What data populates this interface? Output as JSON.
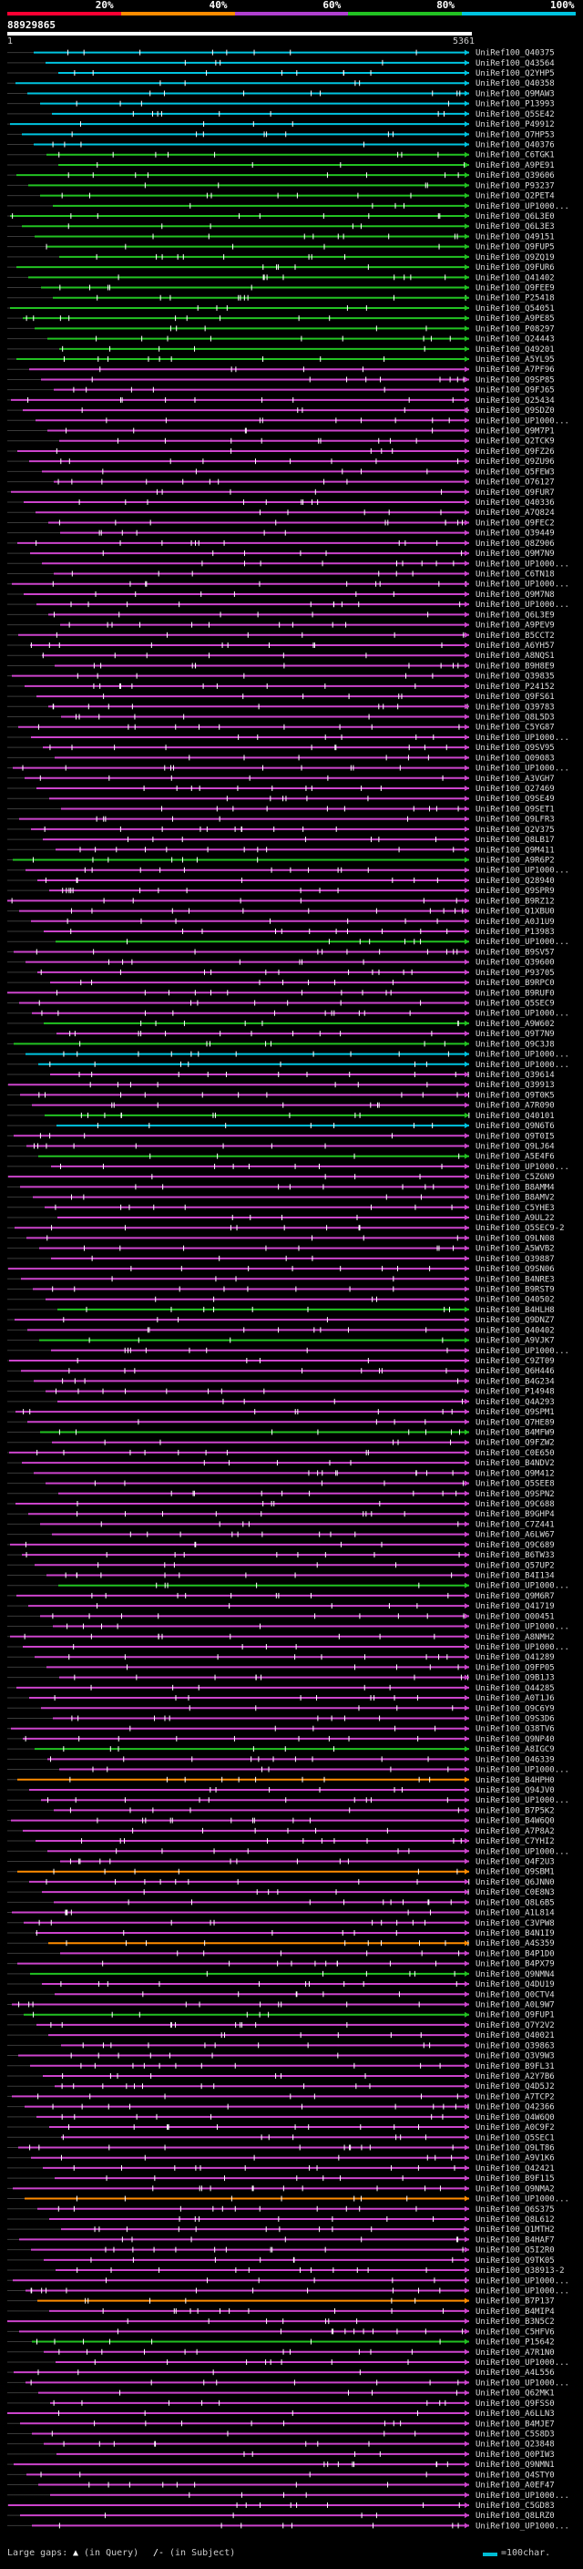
{
  "scale": {
    "labels": [
      "20%",
      "40%",
      "60%",
      "80%",
      "100%"
    ],
    "colors": [
      "#ff0033",
      "#ff8c00",
      "#b040d0",
      "#22c222",
      "#00c4e0"
    ]
  },
  "query": {
    "id": "88929865",
    "start": "1",
    "end": "5361"
  },
  "hit_colors": {
    "cyan": "#00c4e0",
    "green": "#22c222",
    "magenta": "#cc44cc",
    "orange": "#ff8c00",
    "gaps": "#888888"
  },
  "hits": [
    {
      "name": "UniRef100_Q40375",
      "color": "cyan"
    },
    {
      "name": "UniRef100_Q43564",
      "color": "cyan"
    },
    {
      "name": "UniRef100_Q2YHP5",
      "color": "cyan"
    },
    {
      "name": "UniRef100_Q40358",
      "color": "cyan"
    },
    {
      "name": "UniRef100_Q9MAW3",
      "color": "cyan"
    },
    {
      "name": "UniRef100_P13993",
      "color": "cyan"
    },
    {
      "name": "UniRef100_Q5SE42",
      "color": "cyan"
    },
    {
      "name": "UniRef100_P49912",
      "color": "cyan"
    },
    {
      "name": "UniRef100_Q7HP53",
      "color": "cyan"
    },
    {
      "name": "UniRef100_Q40376",
      "color": "cyan"
    },
    {
      "name": "UniRef100_C6TGK1",
      "color": "green"
    },
    {
      "name": "UniRef100_A9PE91",
      "color": "green"
    },
    {
      "name": "UniRef100_Q39606",
      "color": "green"
    },
    {
      "name": "UniRef100_P93237",
      "color": "green"
    },
    {
      "name": "UniRef100_Q2PET4",
      "color": "green"
    },
    {
      "name": "UniRef100_UP1000...",
      "color": "green"
    },
    {
      "name": "UniRef100_Q6L3E0",
      "color": "green"
    },
    {
      "name": "UniRef100_Q6L3E3",
      "color": "green"
    },
    {
      "name": "UniRef100_Q49151",
      "color": "green"
    },
    {
      "name": "UniRef100_Q9FUP5",
      "color": "green"
    },
    {
      "name": "UniRef100_Q9ZQ19",
      "color": "green"
    },
    {
      "name": "UniRef100_Q9FUR6",
      "color": "green"
    },
    {
      "name": "UniRef100_Q41402",
      "color": "green"
    },
    {
      "name": "UniRef100_Q9FEE9",
      "color": "green"
    },
    {
      "name": "UniRef100_P25418",
      "color": "green"
    },
    {
      "name": "UniRef100_Q54051",
      "color": "green"
    },
    {
      "name": "UniRef100_A9PE85",
      "color": "green"
    },
    {
      "name": "UniRef100_P08297",
      "color": "green"
    },
    {
      "name": "UniRef100_Q24443",
      "color": "green"
    },
    {
      "name": "UniRef100_Q49201",
      "color": "green"
    },
    {
      "name": "UniRef100_A5YL95",
      "color": "green"
    },
    {
      "name": "UniRef100_A7PF96",
      "color": "magenta"
    },
    {
      "name": "UniRef100_Q9SP85",
      "color": "magenta"
    },
    {
      "name": "UniRef100_Q9FJ65",
      "color": "magenta"
    },
    {
      "name": "UniRef100_Q25434",
      "color": "magenta"
    },
    {
      "name": "UniRef100_Q9SDZ0",
      "color": "magenta"
    },
    {
      "name": "UniRef100_UP1000...",
      "color": "magenta"
    },
    {
      "name": "UniRef100_Q9M7P1",
      "color": "magenta"
    },
    {
      "name": "UniRef100_Q2TCK9",
      "color": "magenta"
    },
    {
      "name": "UniRef100_Q9FZ26",
      "color": "magenta"
    },
    {
      "name": "UniRef100_Q9ZU96",
      "color": "magenta"
    },
    {
      "name": "UniRef100_Q5FEW3",
      "color": "magenta"
    },
    {
      "name": "UniRef100_O76127",
      "color": "magenta"
    },
    {
      "name": "UniRef100_Q9FUR7",
      "color": "magenta"
    },
    {
      "name": "UniRef100_Q40336",
      "color": "magenta"
    },
    {
      "name": "UniRef100_A7Q824",
      "color": "magenta"
    },
    {
      "name": "UniRef100_Q9FEC2",
      "color": "magenta"
    },
    {
      "name": "UniRef100_Q39449",
      "color": "magenta"
    },
    {
      "name": "UniRef100_Q8Z906",
      "color": "magenta"
    },
    {
      "name": "UniRef100_Q9M7N9",
      "color": "magenta"
    },
    {
      "name": "UniRef100_UP1000...",
      "color": "magenta"
    },
    {
      "name": "UniRef100_C6TN18",
      "color": "magenta"
    },
    {
      "name": "UniRef100_UP1000...",
      "color": "magenta"
    },
    {
      "name": "UniRef100_Q9M7N8",
      "color": "magenta"
    },
    {
      "name": "UniRef100_UP1000...",
      "color": "magenta"
    },
    {
      "name": "UniRef100_Q6L3E9",
      "color": "magenta"
    },
    {
      "name": "UniRef100_A9PEV9",
      "color": "magenta"
    },
    {
      "name": "UniRef100_B5CCT2",
      "color": "magenta"
    },
    {
      "name": "UniRef100_A6YH57",
      "color": "magenta"
    },
    {
      "name": "UniRef100_A8NQS1",
      "color": "magenta"
    },
    {
      "name": "UniRef100_B9H8E9",
      "color": "magenta"
    },
    {
      "name": "UniRef100_Q39835",
      "color": "magenta"
    },
    {
      "name": "UniRef100_P24152",
      "color": "magenta"
    },
    {
      "name": "UniRef100_Q9FS61",
      "color": "magenta"
    },
    {
      "name": "UniRef100_Q39783",
      "color": "magenta"
    },
    {
      "name": "UniRef100_Q8L5D3",
      "color": "magenta"
    },
    {
      "name": "UniRef100_C5YG87",
      "color": "magenta"
    },
    {
      "name": "UniRef100_UP1000...",
      "color": "magenta"
    },
    {
      "name": "UniRef100_Q9SV95",
      "color": "magenta"
    },
    {
      "name": "UniRef100_Q09083",
      "color": "magenta"
    },
    {
      "name": "UniRef100_UP1000...",
      "color": "magenta"
    },
    {
      "name": "UniRef100_A3VGH7",
      "color": "magenta"
    },
    {
      "name": "UniRef100_Q27469",
      "color": "magenta"
    },
    {
      "name": "UniRef100_Q9SE49",
      "color": "magenta"
    },
    {
      "name": "UniRef100_Q9SET1",
      "color": "magenta"
    },
    {
      "name": "UniRef100_Q9LFR3",
      "color": "magenta"
    },
    {
      "name": "UniRef100_Q2V375",
      "color": "magenta"
    },
    {
      "name": "UniRef100_Q8LB17",
      "color": "magenta"
    },
    {
      "name": "UniRef100_Q9M411",
      "color": "magenta"
    },
    {
      "name": "UniRef100_A9R6P2",
      "color": "green"
    },
    {
      "name": "UniRef100_UP1000...",
      "color": "magenta"
    },
    {
      "name": "UniRef100_Q28940",
      "color": "magenta"
    },
    {
      "name": "UniRef100_Q9SPR9",
      "color": "magenta"
    },
    {
      "name": "UniRef100_B9RZ12",
      "color": "magenta"
    },
    {
      "name": "UniRef100_Q1XBU0",
      "color": "magenta"
    },
    {
      "name": "UniRef100_A0J1U9",
      "color": "magenta"
    },
    {
      "name": "UniRef100_P13983",
      "color": "magenta"
    },
    {
      "name": "UniRef100_UP1000...",
      "color": "green"
    },
    {
      "name": "UniRef100_B9SV57",
      "color": "magenta"
    },
    {
      "name": "UniRef100_Q39600",
      "color": "magenta"
    },
    {
      "name": "UniRef100_P93705",
      "color": "magenta"
    },
    {
      "name": "UniRef100_B9RPC0",
      "color": "magenta"
    },
    {
      "name": "UniRef100_B9RUF0",
      "color": "magenta"
    },
    {
      "name": "UniRef100_Q5SEC9",
      "color": "magenta"
    },
    {
      "name": "UniRef100_UP1000...",
      "color": "magenta"
    },
    {
      "name": "UniRef100_A9W602",
      "color": "green"
    },
    {
      "name": "UniRef100_Q9T7N9",
      "color": "magenta"
    },
    {
      "name": "UniRef100_Q9C3J8",
      "color": "green"
    },
    {
      "name": "UniRef100_UP1000...",
      "color": "cyan"
    },
    {
      "name": "UniRef100_UP1000...",
      "color": "cyan"
    },
    {
      "name": "UniRef100_Q39614",
      "color": "magenta"
    },
    {
      "name": "UniRef100_Q39913",
      "color": "magenta"
    },
    {
      "name": "UniRef100_Q9T0K5",
      "color": "magenta"
    },
    {
      "name": "UniRef100_A7R090",
      "color": "magenta"
    },
    {
      "name": "UniRef100_Q40101",
      "color": "green"
    },
    {
      "name": "UniRef100_Q9N6T6",
      "color": "cyan"
    },
    {
      "name": "UniRef100_Q9T0I5",
      "color": "magenta"
    },
    {
      "name": "UniRef100_Q9LJ64",
      "color": "magenta"
    },
    {
      "name": "UniRef100_A5E4F6",
      "color": "green"
    },
    {
      "name": "UniRef100_UP1000...",
      "color": "magenta"
    },
    {
      "name": "UniRef100_C5Z6N9",
      "color": "magenta"
    },
    {
      "name": "UniRef100_B8AMM4",
      "color": "magenta"
    },
    {
      "name": "UniRef100_B8AMV2",
      "color": "magenta"
    },
    {
      "name": "UniRef100_C5YHE3",
      "color": "magenta"
    },
    {
      "name": "UniRef100_A9UL22",
      "color": "magenta"
    },
    {
      "name": "UniRef100_Q5SEC9-2",
      "color": "magenta"
    },
    {
      "name": "UniRef100_Q9LN08",
      "color": "magenta"
    },
    {
      "name": "UniRef100_A5WVB2",
      "color": "magenta"
    },
    {
      "name": "UniRef100_Q39887",
      "color": "magenta"
    },
    {
      "name": "UniRef100_Q9SN06",
      "color": "magenta"
    },
    {
      "name": "UniRef100_B4NRE3",
      "color": "magenta"
    },
    {
      "name": "UniRef100_B9RST9",
      "color": "magenta"
    },
    {
      "name": "UniRef100_Q40502",
      "color": "magenta"
    },
    {
      "name": "UniRef100_B4HLH8",
      "color": "green"
    },
    {
      "name": "UniRef100_Q9DNZ7",
      "color": "magenta"
    },
    {
      "name": "UniRef100_Q40402",
      "color": "magenta"
    },
    {
      "name": "UniRef100_A9VJK7",
      "color": "green"
    },
    {
      "name": "UniRef100_UP1000...",
      "color": "magenta"
    },
    {
      "name": "UniRef100_C9ZT09",
      "color": "magenta"
    },
    {
      "name": "UniRef100_Q6H446",
      "color": "magenta"
    },
    {
      "name": "UniRef100_B4G234",
      "color": "magenta"
    },
    {
      "name": "UniRef100_P14948",
      "color": "magenta"
    },
    {
      "name": "UniRef100_Q4A293",
      "color": "magenta"
    },
    {
      "name": "UniRef100_Q9SPM1",
      "color": "magenta"
    },
    {
      "name": "UniRef100_Q7HE89",
      "color": "magenta"
    },
    {
      "name": "UniRef100_B4MFW9",
      "color": "green"
    },
    {
      "name": "UniRef100_Q9FZW2",
      "color": "magenta"
    },
    {
      "name": "UniRef100_C0E650",
      "color": "magenta"
    },
    {
      "name": "UniRef100_B4NDV2",
      "color": "magenta"
    },
    {
      "name": "UniRef100_Q9M412",
      "color": "magenta"
    },
    {
      "name": "UniRef100_Q5SEE8",
      "color": "magenta"
    },
    {
      "name": "UniRef100_Q9SPN2",
      "color": "magenta"
    },
    {
      "name": "UniRef100_Q9C688",
      "color": "magenta"
    },
    {
      "name": "UniRef100_B9GHP4",
      "color": "magenta"
    },
    {
      "name": "UniRef100_C7Z441",
      "color": "magenta"
    },
    {
      "name": "UniRef100_A6LW67",
      "color": "magenta"
    },
    {
      "name": "UniRef100_Q9C689",
      "color": "magenta"
    },
    {
      "name": "UniRef100_B6TW33",
      "color": "magenta"
    },
    {
      "name": "UniRef100_Q57UP2",
      "color": "magenta"
    },
    {
      "name": "UniRef100_B4I134",
      "color": "magenta"
    },
    {
      "name": "UniRef100_UP1000...",
      "color": "green"
    },
    {
      "name": "UniRef100_Q9M6R7",
      "color": "magenta"
    },
    {
      "name": "UniRef100_Q41719",
      "color": "magenta"
    },
    {
      "name": "UniRef100_Q00451",
      "color": "magenta"
    },
    {
      "name": "UniRef100_UP1000...",
      "color": "magenta"
    },
    {
      "name": "UniRef100_A8NMH2",
      "color": "magenta"
    },
    {
      "name": "UniRef100_UP1000...",
      "color": "magenta"
    },
    {
      "name": "UniRef100_Q41289",
      "color": "magenta"
    },
    {
      "name": "UniRef100_Q9FP05",
      "color": "magenta"
    },
    {
      "name": "UniRef100_Q9B1J3",
      "color": "magenta"
    },
    {
      "name": "UniRef100_Q44285",
      "color": "magenta"
    },
    {
      "name": "UniRef100_A0T1J6",
      "color": "magenta"
    },
    {
      "name": "UniRef100_Q9C6Y9",
      "color": "magenta"
    },
    {
      "name": "UniRef100_Q9S3D6",
      "color": "magenta"
    },
    {
      "name": "UniRef100_Q38TV6",
      "color": "magenta"
    },
    {
      "name": "UniRef100_Q9NP40",
      "color": "magenta"
    },
    {
      "name": "UniRef100_A8IGC9",
      "color": "green"
    },
    {
      "name": "UniRef100_Q46339",
      "color": "magenta"
    },
    {
      "name": "UniRef100_UP1000...",
      "color": "magenta"
    },
    {
      "name": "UniRef100_B4HPH0",
      "color": "orange"
    },
    {
      "name": "UniRef100_Q94JV0",
      "color": "magenta"
    },
    {
      "name": "UniRef100_UP1000...",
      "color": "magenta"
    },
    {
      "name": "UniRef100_B7P5K2",
      "color": "magenta"
    },
    {
      "name": "UniRef100_B4W6Q0",
      "color": "magenta"
    },
    {
      "name": "UniRef100_A7P8A2",
      "color": "magenta"
    },
    {
      "name": "UniRef100_C7YHI2",
      "color": "magenta"
    },
    {
      "name": "UniRef100_UP1000...",
      "color": "magenta"
    },
    {
      "name": "UniRef100_Q4F2U3",
      "color": "magenta"
    },
    {
      "name": "UniRef100_Q9SBM1",
      "color": "orange"
    },
    {
      "name": "UniRef100_Q6JNN0",
      "color": "magenta"
    },
    {
      "name": "UniRef100_C0E8N3",
      "color": "magenta"
    },
    {
      "name": "UniRef100_Q8L6B5",
      "color": "magenta"
    },
    {
      "name": "UniRef100_A1L814",
      "color": "magenta"
    },
    {
      "name": "UniRef100_C3VPW8",
      "color": "magenta"
    },
    {
      "name": "UniRef100_B4N1I9",
      "color": "magenta"
    },
    {
      "name": "UniRef100_A4S359",
      "color": "orange"
    },
    {
      "name": "UniRef100_B4P1D0",
      "color": "magenta"
    },
    {
      "name": "UniRef100_B4PX79",
      "color": "magenta"
    },
    {
      "name": "UniRef100_Q9NMN4",
      "color": "green"
    },
    {
      "name": "UniRef100_Q4DU19",
      "color": "magenta"
    },
    {
      "name": "UniRef100_Q0CTV4",
      "color": "magenta"
    },
    {
      "name": "UniRef100_A0L9W7",
      "color": "magenta"
    },
    {
      "name": "UniRef100_Q9FUP1",
      "color": "green"
    },
    {
      "name": "UniRef100_Q7Y2V2",
      "color": "magenta"
    },
    {
      "name": "UniRef100_Q40021",
      "color": "magenta"
    },
    {
      "name": "UniRef100_Q39863",
      "color": "magenta"
    },
    {
      "name": "UniRef100_Q3V9W3",
      "color": "magenta"
    },
    {
      "name": "UniRef100_B9FL31",
      "color": "magenta"
    },
    {
      "name": "UniRef100_A2Y7B6",
      "color": "magenta"
    },
    {
      "name": "UniRef100_Q4D5J2",
      "color": "magenta"
    },
    {
      "name": "UniRef100_A7TCP2",
      "color": "magenta"
    },
    {
      "name": "UniRef100_Q42366",
      "color": "magenta"
    },
    {
      "name": "UniRef100_Q4W6Q0",
      "color": "magenta"
    },
    {
      "name": "UniRef100_A0C9F2",
      "color": "magenta"
    },
    {
      "name": "UniRef100_Q5SEC1",
      "color": "magenta"
    },
    {
      "name": "UniRef100_Q9LT86",
      "color": "magenta"
    },
    {
      "name": "UniRef100_A9V1K6",
      "color": "magenta"
    },
    {
      "name": "UniRef100_Q42421",
      "color": "magenta"
    },
    {
      "name": "UniRef100_B9F115",
      "color": "magenta"
    },
    {
      "name": "UniRef100_Q9NMA2",
      "color": "magenta"
    },
    {
      "name": "UniRef100_UP1000...",
      "color": "orange"
    },
    {
      "name": "UniRef100_Q6S375",
      "color": "magenta"
    },
    {
      "name": "UniRef100_Q8L612",
      "color": "magenta"
    },
    {
      "name": "UniRef100_Q1MTH2",
      "color": "magenta"
    },
    {
      "name": "UniRef100_B4HAF7",
      "color": "magenta"
    },
    {
      "name": "UniRef100_Q5I2R0",
      "color": "magenta"
    },
    {
      "name": "UniRef100_Q9TK05",
      "color": "magenta"
    },
    {
      "name": "UniRef100_Q38913-2",
      "color": "magenta"
    },
    {
      "name": "UniRef100_UP1000...",
      "color": "magenta"
    },
    {
      "name": "UniRef100_UP1000...",
      "color": "magenta"
    },
    {
      "name": "UniRef100_B7P137",
      "color": "orange"
    },
    {
      "name": "UniRef100_B4MIP4",
      "color": "magenta"
    },
    {
      "name": "UniRef100_B3N5C2",
      "color": "magenta"
    },
    {
      "name": "UniRef100_C5HFV6",
      "color": "magenta"
    },
    {
      "name": "UniRef100_P15642",
      "color": "green"
    },
    {
      "name": "UniRef100_A7R1N0",
      "color": "magenta"
    },
    {
      "name": "UniRef100_UP1000...",
      "color": "magenta"
    },
    {
      "name": "UniRef100_A4L556",
      "color": "magenta"
    },
    {
      "name": "UniRef100_UP1000...",
      "color": "magenta"
    },
    {
      "name": "UniRef100_Q62MK1",
      "color": "magenta"
    },
    {
      "name": "UniRef100_Q9FSS0",
      "color": "magenta"
    },
    {
      "name": "UniRef100_A6LLN3",
      "color": "magenta"
    },
    {
      "name": "UniRef100_B4MJE7",
      "color": "magenta"
    },
    {
      "name": "UniRef100_C5S8D3",
      "color": "magenta"
    },
    {
      "name": "UniRef100_Q23848",
      "color": "magenta"
    },
    {
      "name": "UniRef100_Q0PIW3",
      "color": "magenta"
    },
    {
      "name": "UniRef100_Q9NMN1",
      "color": "magenta"
    },
    {
      "name": "UniRef100_Q4STY0",
      "color": "magenta"
    },
    {
      "name": "UniRef100_A0EF47",
      "color": "magenta"
    },
    {
      "name": "UniRef100_UP1000...",
      "color": "magenta"
    },
    {
      "name": "UniRef100_C5GD83",
      "color": "magenta"
    },
    {
      "name": "UniRef100_Q8LRZ0",
      "color": "magenta"
    },
    {
      "name": "UniRef100_UP1000...",
      "color": "magenta"
    }
  ],
  "legend": {
    "gaps_label": "Large gaps:",
    "query_gap": "(in Query)",
    "subject_gap": "(in Subject)",
    "scale_label": "=100char."
  }
}
